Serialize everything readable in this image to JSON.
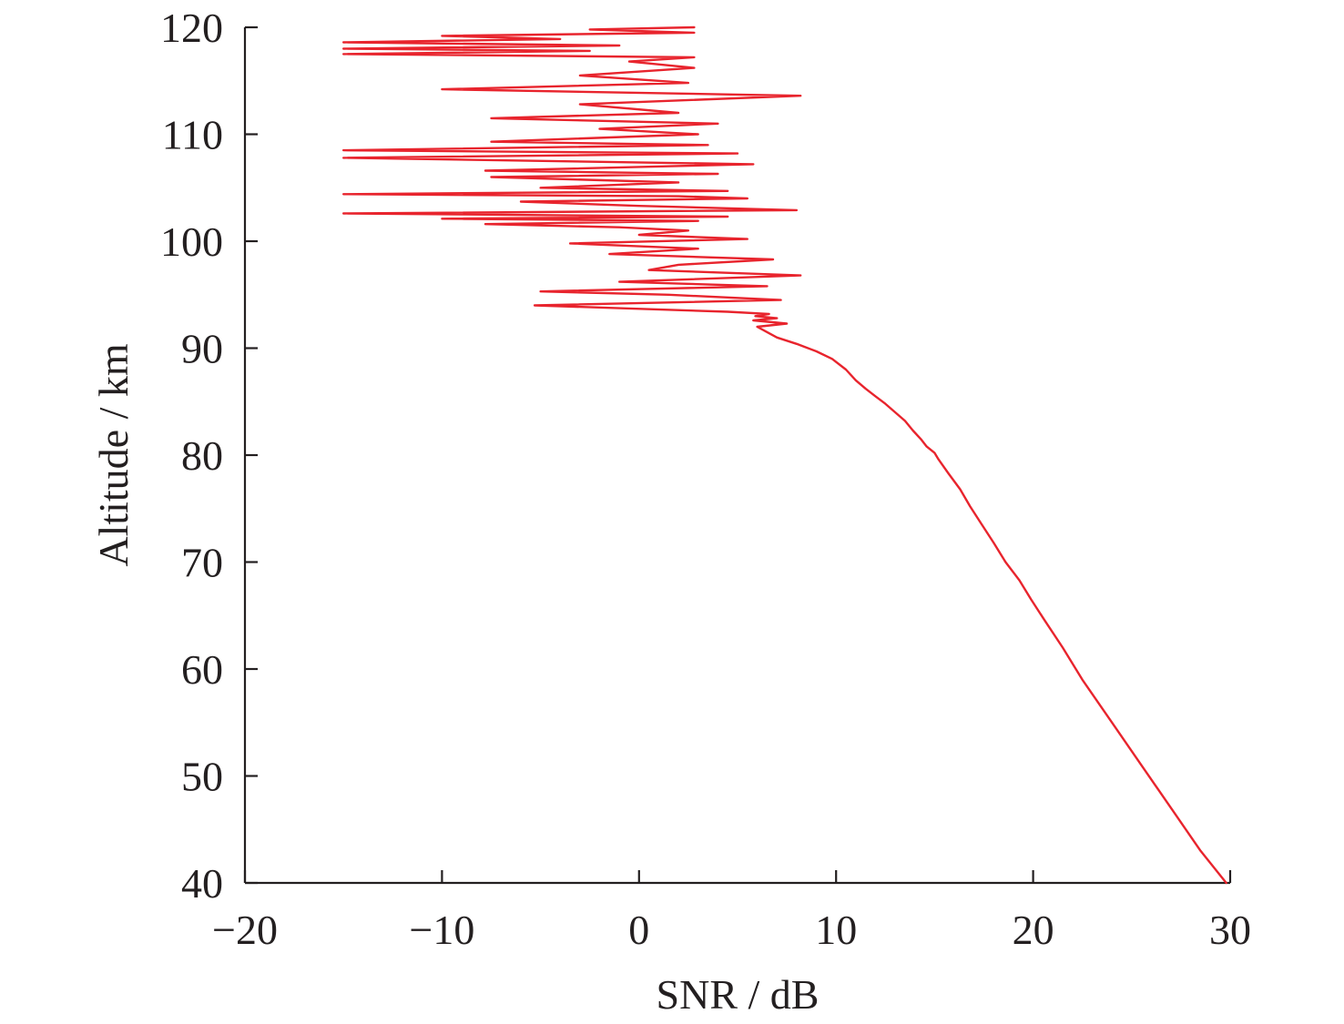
{
  "chart_data": {
    "type": "line",
    "title": "",
    "xlabel": "SNR / dB",
    "ylabel": "Altitude / km",
    "xlim": [
      -20,
      30
    ],
    "ylim": [
      40,
      120
    ],
    "xticks": [
      -20,
      -10,
      0,
      10,
      20,
      30
    ],
    "xtick_labels": [
      "−20",
      "−10",
      "0",
      "10",
      "20",
      "30"
    ],
    "yticks": [
      40,
      50,
      60,
      70,
      80,
      90,
      100,
      110,
      120
    ],
    "ytick_labels": [
      "40",
      "50",
      "60",
      "70",
      "80",
      "90",
      "100",
      "110",
      "120"
    ],
    "grid": false,
    "legend": "none",
    "series": [
      {
        "color": "#e8242d",
        "x": [
          29.8,
          28.5,
          27.0,
          25.5,
          24.0,
          22.5,
          21.5,
          20.6,
          19.9,
          19.3,
          18.6,
          18.0,
          17.4,
          16.8,
          16.3,
          15.7,
          15.2,
          15.0,
          14.6,
          14.3,
          13.9,
          13.5,
          13.0,
          12.5,
          12.0,
          11.5,
          11.0,
          10.5,
          9.8,
          9.0,
          8.0,
          7.0,
          6.5,
          6.0,
          7.5,
          5.8,
          7.0,
          5.9,
          6.6,
          4.5,
          -5.3,
          7.2,
          1.5,
          -5.0,
          6.5,
          -1.0,
          8.2,
          0.5,
          2.0,
          6.8,
          -1.5,
          3.0,
          -3.5,
          5.5,
          0.0,
          2.5,
          -1.0,
          -7.8,
          3.0,
          -10.0,
          4.5,
          -15.0,
          8.0,
          0.0,
          -6.0,
          5.5,
          2.0,
          -15.0,
          4.5,
          -5.0,
          2.0,
          -7.5,
          4.0,
          -7.8,
          5.8,
          -15.0,
          5.0,
          -15.0,
          3.5,
          -7.5,
          3.0,
          -2.0,
          4.0,
          -7.5,
          2.0,
          -3.0,
          8.2,
          -10.0,
          2.5,
          -3.0,
          2.8,
          -0.5,
          2.8,
          -15.0,
          -2.5,
          -15.0,
          -1.0,
          -15.0,
          -4.0,
          -10.0,
          2.8,
          -2.5,
          2.8
        ],
        "y": [
          40,
          43,
          47,
          51,
          55,
          59,
          62,
          64.5,
          66.5,
          68.3,
          70.0,
          71.8,
          73.5,
          75.2,
          76.8,
          78.3,
          79.6,
          80.2,
          80.8,
          81.5,
          82.3,
          83.2,
          84.0,
          84.8,
          85.5,
          86.2,
          87.0,
          88.0,
          89.0,
          89.7,
          90.4,
          91.0,
          91.5,
          92.0,
          92.3,
          92.6,
          92.8,
          93.0,
          93.2,
          93.4,
          94.0,
          94.5,
          95.0,
          95.3,
          95.8,
          96.2,
          96.8,
          97.3,
          97.8,
          98.3,
          98.8,
          99.3,
          99.8,
          100.2,
          100.6,
          101.0,
          101.3,
          101.6,
          101.9,
          102.1,
          102.3,
          102.6,
          102.9,
          103.3,
          103.7,
          104.0,
          104.2,
          104.4,
          104.7,
          105.0,
          105.5,
          106.0,
          106.3,
          106.6,
          107.2,
          107.8,
          108.2,
          108.5,
          109.0,
          109.3,
          110.0,
          110.5,
          111.0,
          111.5,
          112.0,
          112.8,
          113.6,
          114.2,
          114.8,
          115.5,
          116.2,
          116.8,
          117.2,
          117.5,
          117.8,
          118.0,
          118.3,
          118.6,
          118.9,
          119.2,
          119.5,
          119.8,
          120.0
        ]
      }
    ]
  }
}
